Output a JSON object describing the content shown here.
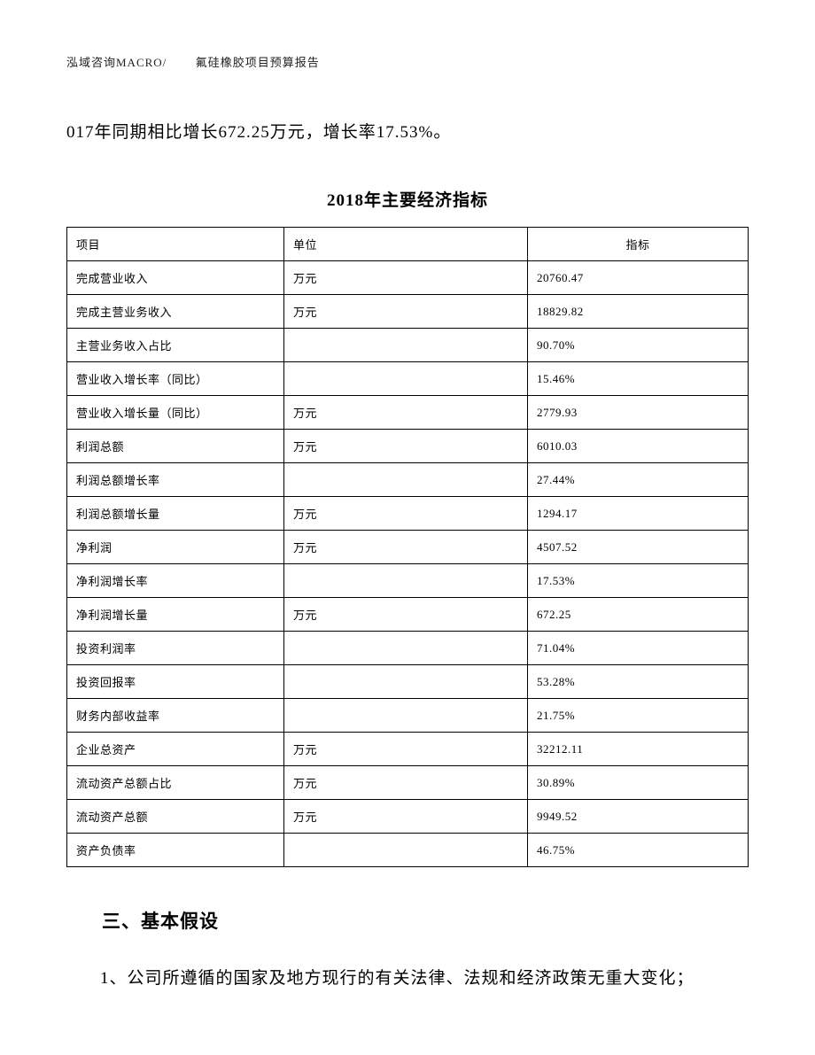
{
  "header": {
    "company": "泓域咨询MACRO/",
    "doc_title": "氟硅橡胶项目预算报告"
  },
  "intro_text": "017年同期相比增长672.25万元，增长率17.53%。",
  "table": {
    "title": "2018年主要经济指标",
    "columns": [
      "项目",
      "单位",
      "指标"
    ],
    "rows": [
      [
        "完成营业收入",
        "万元",
        "20760.47"
      ],
      [
        "完成主营业务收入",
        "万元",
        "18829.82"
      ],
      [
        "主营业务收入占比",
        "",
        "90.70%"
      ],
      [
        "营业收入增长率（同比）",
        "",
        "15.46%"
      ],
      [
        "营业收入增长量（同比）",
        "万元",
        "2779.93"
      ],
      [
        "利润总额",
        "万元",
        "6010.03"
      ],
      [
        "利润总额增长率",
        "",
        "27.44%"
      ],
      [
        "利润总额增长量",
        "万元",
        "1294.17"
      ],
      [
        "净利润",
        "万元",
        "4507.52"
      ],
      [
        "净利润增长率",
        "",
        "17.53%"
      ],
      [
        "净利润增长量",
        "万元",
        "672.25"
      ],
      [
        "投资利润率",
        "",
        "71.04%"
      ],
      [
        "投资回报率",
        "",
        "53.28%"
      ],
      [
        "财务内部收益率",
        "",
        "21.75%"
      ],
      [
        "企业总资产",
        "万元",
        "32212.11"
      ],
      [
        "流动资产总额占比",
        "万元",
        "30.89%"
      ],
      [
        "流动资产总额",
        "万元",
        "9949.52"
      ],
      [
        "资产负债率",
        "",
        "46.75%"
      ]
    ]
  },
  "section_heading": "三、基本假设",
  "body_paragraph": "1、公司所遵循的国家及地方现行的有关法律、法规和经济政策无重大变化；"
}
